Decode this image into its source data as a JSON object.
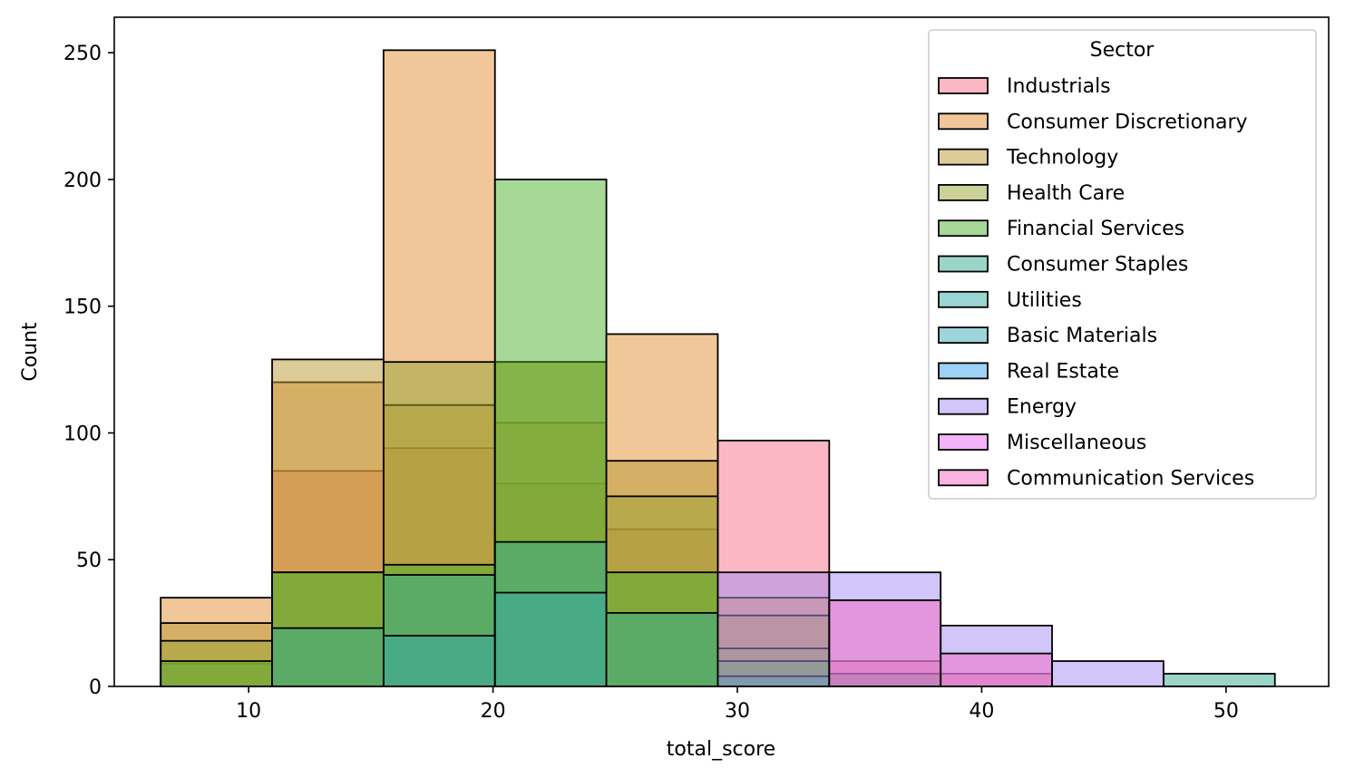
{
  "chart_data": {
    "type": "bar",
    "subtype": "overlaid-histogram",
    "xlabel": "total_score",
    "ylabel": "Count",
    "xlim": [
      4.5,
      54.2
    ],
    "ylim": [
      0,
      264
    ],
    "xticks": [
      10,
      20,
      30,
      40,
      50
    ],
    "yticks": [
      0,
      50,
      100,
      150,
      200,
      250
    ],
    "bin_edges": [
      6.4,
      10.96,
      15.52,
      20.08,
      24.64,
      29.2,
      33.76,
      38.32,
      42.88,
      47.44,
      52.0
    ],
    "legend": {
      "title": "Sector",
      "position": "top-right"
    },
    "series": [
      {
        "name": "Industrials",
        "color": "#f77189",
        "values": [
          9,
          85,
          94,
          80,
          62,
          97,
          10,
          5,
          0,
          0
        ]
      },
      {
        "name": "Consumer Discretionary",
        "color": "#e38f36",
        "values": [
          35,
          120,
          251,
          104,
          139,
          35,
          5,
          0,
          0,
          0
        ]
      },
      {
        "name": "Technology",
        "color": "#bb9832",
        "values": [
          25,
          129,
          111,
          128,
          89,
          28,
          0,
          0,
          0,
          0
        ]
      },
      {
        "name": "Health Care",
        "color": "#97a431",
        "values": [
          18,
          45,
          128,
          128,
          75,
          15,
          0,
          0,
          0,
          0
        ]
      },
      {
        "name": "Financial Services",
        "color": "#50b131",
        "values": [
          10,
          45,
          48,
          200,
          45,
          10,
          0,
          0,
          0,
          0
        ]
      },
      {
        "name": "Consumer Staples",
        "color": "#34ae91",
        "values": [
          0,
          23,
          44,
          57,
          29,
          4,
          5,
          0,
          0,
          5
        ]
      },
      {
        "name": "Utilities",
        "color": "#37aba4",
        "values": [
          0,
          0,
          20,
          37,
          0,
          0,
          0,
          0,
          0,
          0
        ]
      },
      {
        "name": "Basic Materials",
        "color": "#39a9b6",
        "values": [
          0,
          0,
          0,
          0,
          0,
          0,
          0,
          0,
          0,
          0
        ]
      },
      {
        "name": "Real Estate",
        "color": "#3ba3ec",
        "values": [
          0,
          0,
          0,
          0,
          0,
          0,
          0,
          0,
          0,
          0
        ]
      },
      {
        "name": "Energy",
        "color": "#a48cf4",
        "values": [
          0,
          0,
          0,
          0,
          0,
          45,
          45,
          24,
          10,
          0
        ]
      },
      {
        "name": "Miscellaneous",
        "color": "#e866f4",
        "values": [
          0,
          0,
          0,
          0,
          0,
          0,
          0,
          0,
          0,
          0
        ]
      },
      {
        "name": "Communication Services",
        "color": "#f668c2",
        "values": [
          0,
          0,
          0,
          0,
          0,
          0,
          34,
          13,
          0,
          0
        ]
      }
    ]
  }
}
